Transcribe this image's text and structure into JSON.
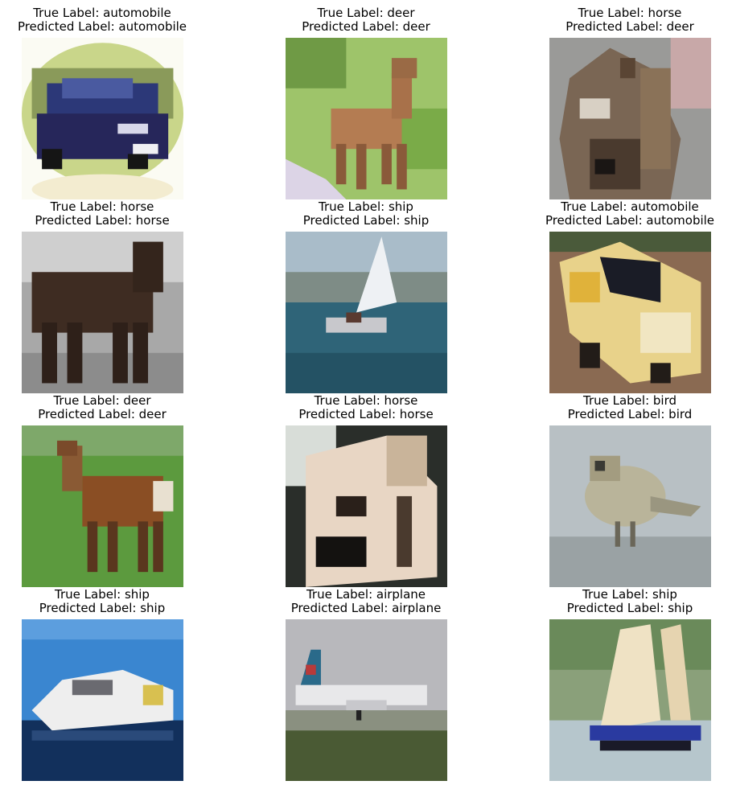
{
  "panels": [
    {
      "true_text": "True Label: automobile",
      "pred_text": "Predicted Label: automobile",
      "icon": "car-photo"
    },
    {
      "true_text": "True Label: deer",
      "pred_text": "Predicted Label: deer",
      "icon": "deer-photo"
    },
    {
      "true_text": "True Label: horse",
      "pred_text": "Predicted Label: deer",
      "icon": "horse-head-photo"
    },
    {
      "true_text": "True Label: horse",
      "pred_text": "Predicted Label: horse",
      "icon": "horse-photo"
    },
    {
      "true_text": "True Label: ship",
      "pred_text": "Predicted Label: ship",
      "icon": "sailboat-photo"
    },
    {
      "true_text": "True Label: automobile",
      "pred_text": "Predicted Label: automobile",
      "icon": "yellow-car-photo"
    },
    {
      "true_text": "True Label: deer",
      "pred_text": "Predicted Label: deer",
      "icon": "deer-photo"
    },
    {
      "true_text": "True Label: horse",
      "pred_text": "Predicted Label: horse",
      "icon": "dog-face-photo"
    },
    {
      "true_text": "True Label: bird",
      "pred_text": "Predicted Label: bird",
      "icon": "bird-photo"
    },
    {
      "true_text": "True Label: ship",
      "pred_text": "Predicted Label: ship",
      "icon": "boat-photo"
    },
    {
      "true_text": "True Label: airplane",
      "pred_text": "Predicted Label: airplane",
      "icon": "airplane-photo"
    },
    {
      "true_text": "True Label: ship",
      "pred_text": "Predicted Label: ship",
      "icon": "sailboat-photo"
    }
  ]
}
